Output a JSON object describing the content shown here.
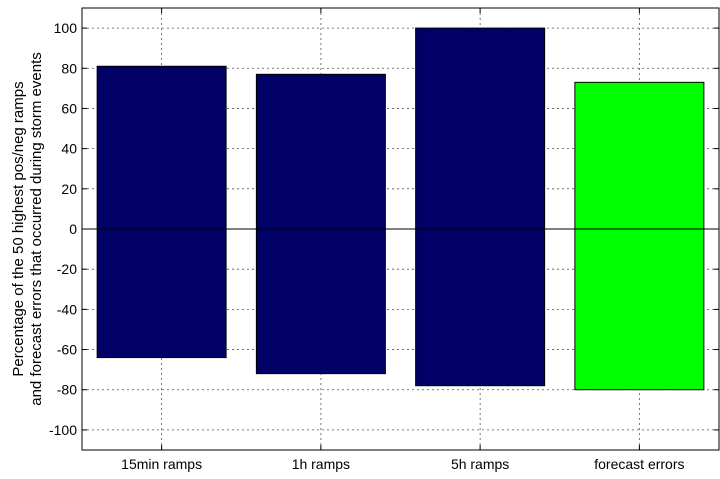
{
  "chart_data": {
    "type": "bar",
    "categories": [
      "15min ramps",
      "1h ramps",
      "5h ramps",
      "forecast errors"
    ],
    "series": [
      {
        "positive": [
          81,
          77,
          100,
          73
        ],
        "negative": [
          -64,
          -72,
          -78,
          -80
        ]
      }
    ],
    "bar_colors": [
      "#000066",
      "#000066",
      "#000066",
      "#00ff00"
    ],
    "ylabel": [
      "Percentage of the 50 highest pos/neg ramps",
      "and forecast errors that occurred during storm events"
    ],
    "yticks": [
      100,
      80,
      60,
      40,
      20,
      0,
      -20,
      -40,
      -60,
      -80,
      -100
    ],
    "ylim": [
      -110,
      110
    ],
    "grid": true
  }
}
